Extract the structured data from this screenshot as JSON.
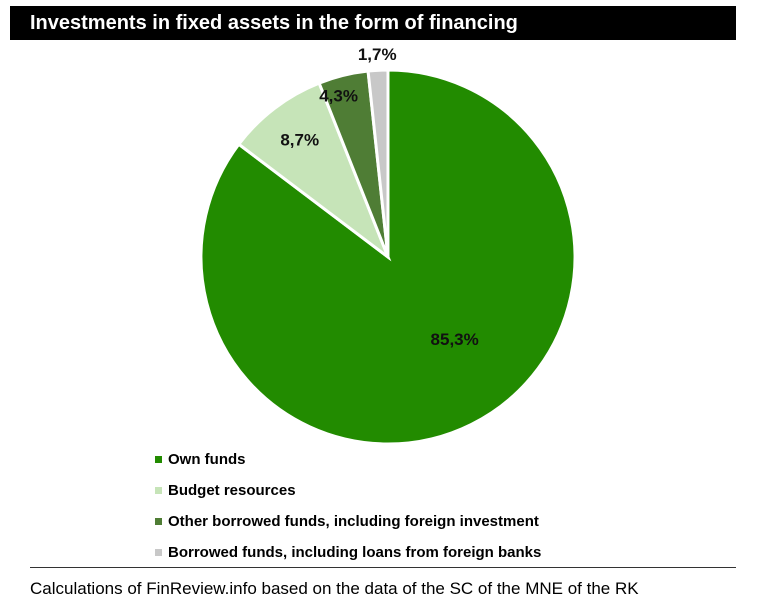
{
  "chart_data": {
    "type": "pie",
    "title": "Investments in fixed assets in the form of financing",
    "series": [
      {
        "name": "Own funds",
        "value": 85.3,
        "label": "85,3%",
        "color": "#228b00"
      },
      {
        "name": "Budget resources",
        "value": 8.7,
        "label": "8,7%",
        "color": "#c6e4b8"
      },
      {
        "name": "Other borrowed funds, including foreign investment",
        "value": 4.3,
        "label": "4,3%",
        "color": "#4f7d35"
      },
      {
        "name": "Borrowed funds, including loans from foreign banks",
        "value": 1.7,
        "label": "1,7%",
        "color": "#c8c8c8"
      }
    ],
    "legend_position": "bottom-left"
  },
  "footer": {
    "source": "Calculations of FinReview.info based on the data of the SC of the MNE of the RK"
  }
}
